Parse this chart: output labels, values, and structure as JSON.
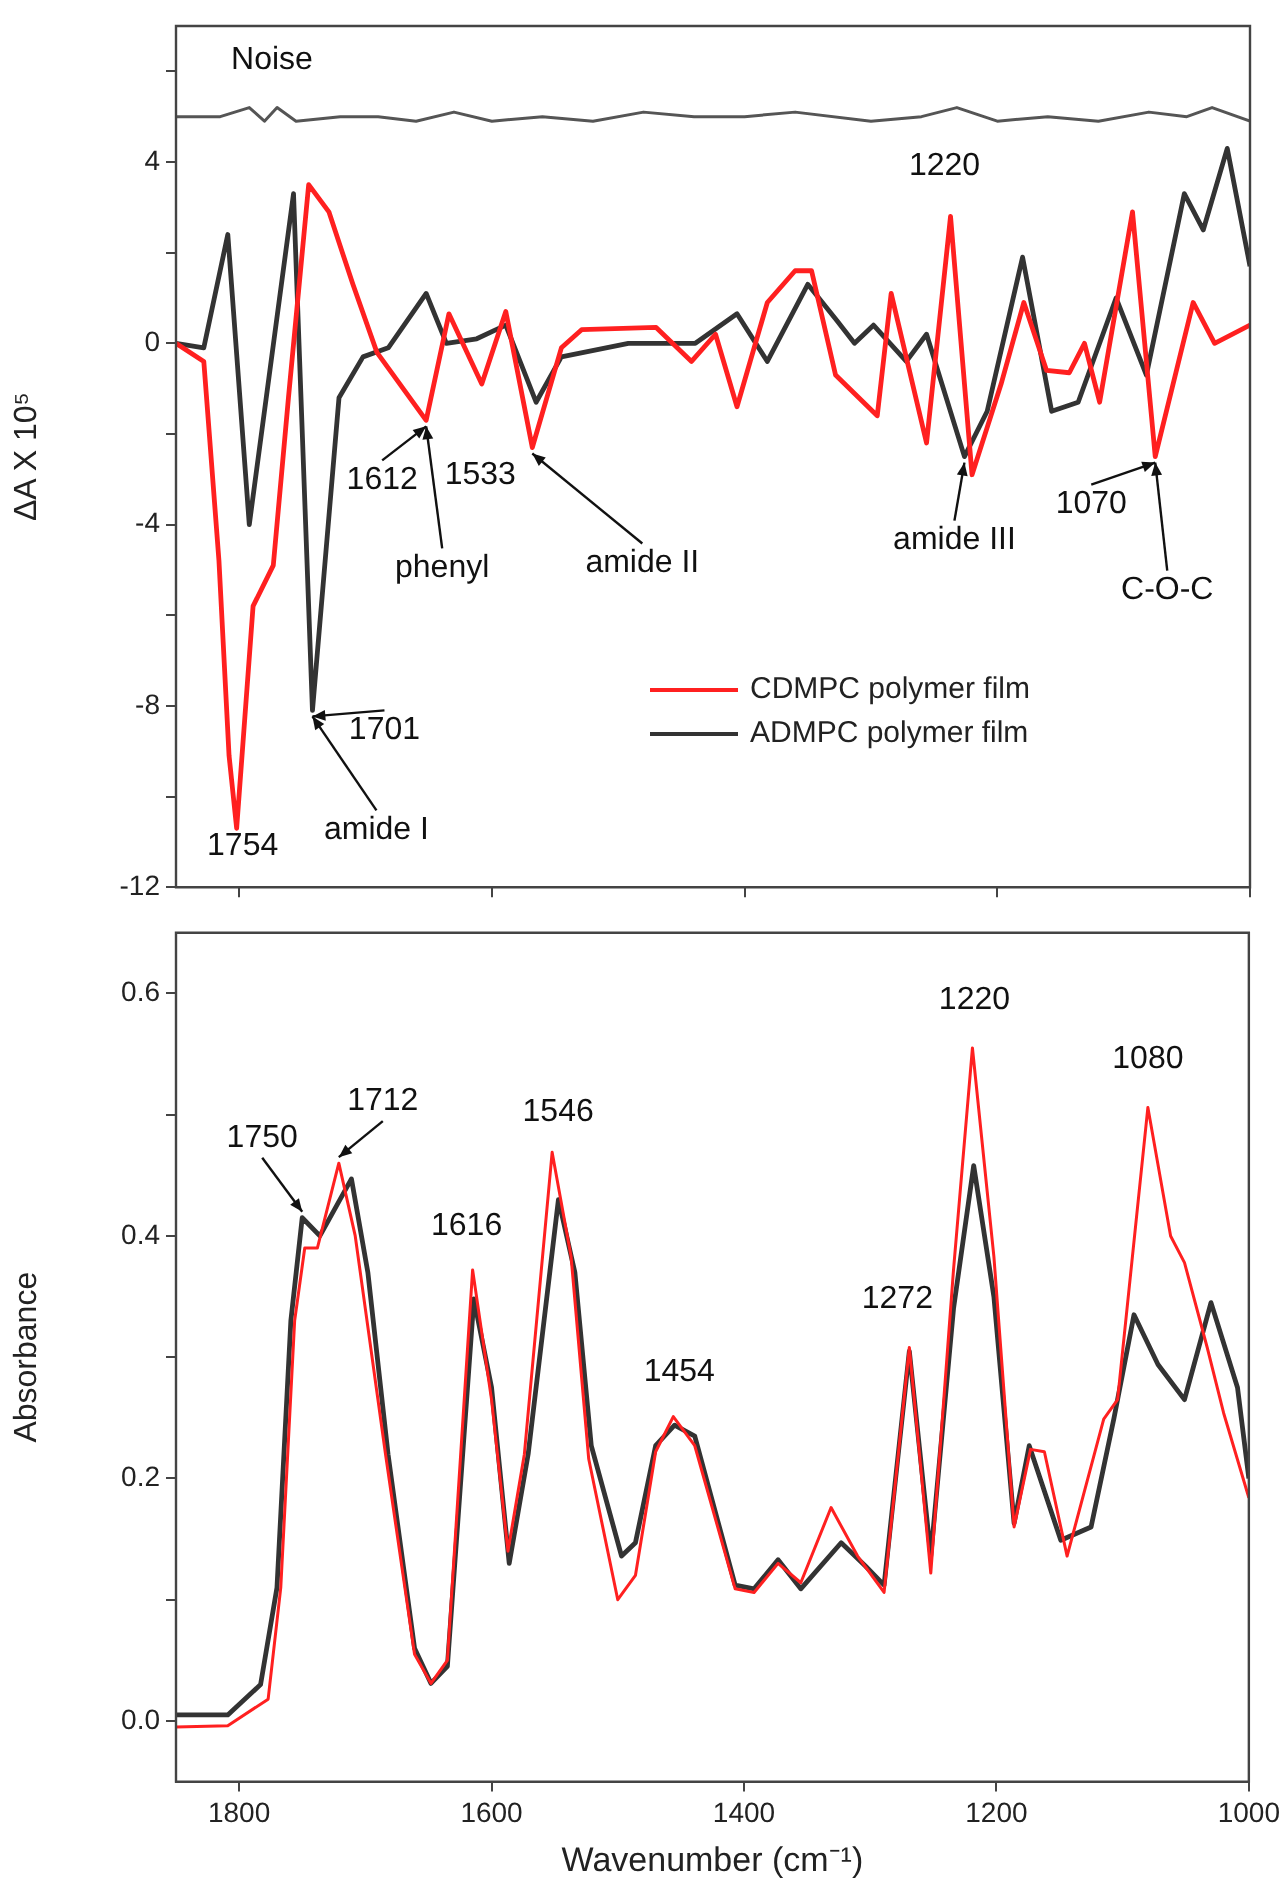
{
  "chart_data": [
    {
      "type": "line",
      "ylabel": "ΔA X 10⁵",
      "xlim": [
        1850,
        1000
      ],
      "xticks": [
        1800,
        1600,
        1400,
        1200,
        1000
      ],
      "tick_labels": "y",
      "ylim": [
        -12,
        7
      ],
      "yticks": [
        {
          "value": 6,
          "label": null
        },
        4,
        {
          "value": 2,
          "label": null
        },
        0,
        {
          "value": -2,
          "label": null
        },
        -4,
        {
          "value": -6,
          "label": null
        },
        -8,
        {
          "value": -10,
          "label": null
        },
        -12
      ],
      "grid": false,
      "legend": "bottom right",
      "marker": "none",
      "series": [
        {
          "color": "#555555",
          "x": [
            1850,
            1815,
            1792,
            1780,
            1770,
            1755,
            1720,
            1690,
            1660,
            1630,
            1600,
            1560,
            1520,
            1480,
            1440,
            1400,
            1360,
            1300,
            1260,
            1232,
            1200,
            1160,
            1120,
            1080,
            1050,
            1030,
            1000
          ],
          "values": [
            5.0,
            5.0,
            5.2,
            4.9,
            5.2,
            4.9,
            5.0,
            5.0,
            4.9,
            5.1,
            4.9,
            5.0,
            4.9,
            5.1,
            5.0,
            5.0,
            5.1,
            4.9,
            5.0,
            5.2,
            4.9,
            5.0,
            4.9,
            5.1,
            5.0,
            5.2,
            4.9
          ]
        },
        {
          "name": "CDMPC polymer film",
          "color": "#ff2020",
          "x": [
            1850,
            1828,
            1816,
            1808,
            1802,
            1789,
            1773,
            1761,
            1745,
            1729,
            1710,
            1691,
            1652,
            1634,
            1608,
            1589,
            1568,
            1545,
            1529,
            1470,
            1442,
            1423,
            1406,
            1382,
            1360,
            1347,
            1328,
            1295,
            1284,
            1256,
            1237,
            1220,
            1197,
            1179,
            1161,
            1143,
            1131,
            1119,
            1093,
            1075,
            1045,
            1028,
            1000
          ],
          "values": [
            0,
            -0.4,
            -4.8,
            -9.1,
            -10.7,
            -5.8,
            -4.9,
            -1.2,
            3.5,
            2.9,
            1.3,
            -0.2,
            -1.7,
            0.65,
            -0.9,
            0.7,
            -2.3,
            -0.1,
            0.3,
            0.35,
            -0.4,
            0.2,
            -1.4,
            0.9,
            1.6,
            1.6,
            -0.7,
            -1.6,
            1.1,
            -2.2,
            2.8,
            -2.9,
            -0.9,
            0.9,
            -0.6,
            -0.65,
            0,
            -1.3,
            2.9,
            -2.5,
            0.9,
            0,
            0.4
          ]
        },
        {
          "name": "ADMPC polymer film",
          "color": "#333333",
          "x": [
            1850,
            1828,
            1809,
            1792,
            1757,
            1742,
            1721,
            1702,
            1682,
            1652,
            1636,
            1612,
            1589,
            1565,
            1545,
            1492,
            1439,
            1406,
            1382,
            1350,
            1327,
            1313,
            1298,
            1272,
            1256,
            1226,
            1208,
            1180,
            1157,
            1136,
            1106,
            1082,
            1052,
            1037,
            1018,
            1000
          ],
          "values": [
            0,
            -0.1,
            2.4,
            -4.0,
            3.3,
            -8.1,
            -1.2,
            -0.3,
            -0.1,
            1.1,
            0,
            0.1,
            0.4,
            -1.3,
            -0.3,
            0,
            0,
            0.65,
            -0.4,
            1.3,
            0.5,
            0,
            0.4,
            -0.4,
            0.2,
            -2.5,
            -1.5,
            1.9,
            -1.5,
            -1.3,
            1.0,
            -0.7,
            3.3,
            2.5,
            4.3,
            1.7
          ]
        }
      ],
      "annotations": [
        "Noise",
        {
          "text": "1220",
          "x": 1237,
          "y": 2.8
        },
        {
          "text": "1612",
          "x": 1652,
          "y": -1.7
        },
        {
          "text": "phenyl",
          "x": 1652,
          "y": -1.7
        },
        {
          "text": "1533",
          "x": 1568,
          "y": -2.3
        },
        {
          "text": "amide II",
          "x": 1568,
          "y": -2.3
        },
        {
          "text": "amide III",
          "x": 1226,
          "y": -2.5
        },
        {
          "text": "1070",
          "x": 1075,
          "y": -2.5
        },
        {
          "text": "C-O-C",
          "x": 1075,
          "y": -2.5
        },
        {
          "text": "1701",
          "x": 1742,
          "y": -8.1
        },
        {
          "text": "amide I",
          "x": 1742,
          "y": -8.1
        },
        {
          "text": "1754",
          "x": 1802,
          "y": -10.7
        }
      ]
    },
    {
      "type": "line",
      "xlabel": "Wavenumber (cm⁻¹)",
      "ylabel": "Absorbance",
      "xlim": [
        1850,
        1000
      ],
      "xticks": [
        1800,
        1600,
        1400,
        1200,
        1000
      ],
      "ylim": [
        -0.05,
        0.65
      ],
      "yticks": [
        {
          "value": 0,
          "label": "0.0"
        },
        {
          "value": 0.1,
          "label": null
        },
        0.2,
        {
          "value": 0.3,
          "label": null
        },
        0.4,
        {
          "value": 0.5,
          "label": null
        },
        0.6
      ],
      "grid": false,
      "marker": "none",
      "series": [
        {
          "color": "#ff2020",
          "x": [
            1850,
            1809,
            1777,
            1767,
            1756,
            1748,
            1738,
            1721,
            1708,
            1684,
            1661,
            1648,
            1635,
            1615,
            1600,
            1587,
            1574,
            1552,
            1537,
            1523,
            1500,
            1486,
            1470,
            1456,
            1439,
            1407,
            1392,
            1373,
            1355,
            1331,
            1310,
            1289,
            1269,
            1252,
            1234,
            1219,
            1202,
            1186,
            1173,
            1162,
            1144,
            1115,
            1104,
            1080,
            1062,
            1051,
            1033,
            1020,
            1000
          ],
          "values": [
            -0.005,
            -0.004,
            0.018,
            0.11,
            0.33,
            0.39,
            0.39,
            0.46,
            0.4,
            0.22,
            0.055,
            0.031,
            0.05,
            0.372,
            0.265,
            0.14,
            0.22,
            0.469,
            0.383,
            0.216,
            0.1,
            0.12,
            0.222,
            0.251,
            0.227,
            0.109,
            0.106,
            0.13,
            0.114,
            0.176,
            0.136,
            0.106,
            0.308,
            0.122,
            0.372,
            0.555,
            0.383,
            0.16,
            0.224,
            0.222,
            0.136,
            0.249,
            0.265,
            0.506,
            0.4,
            0.378,
            0.308,
            0.254,
            0.184
          ]
        },
        {
          "color": "#333333",
          "x": [
            1850,
            1809,
            1783,
            1770,
            1759,
            1750,
            1736,
            1711,
            1698,
            1682,
            1661,
            1648,
            1635,
            1614,
            1600,
            1586,
            1571,
            1547,
            1534,
            1521,
            1497,
            1486,
            1470,
            1455,
            1439,
            1407,
            1392,
            1373,
            1355,
            1323,
            1304,
            1289,
            1269,
            1252,
            1234,
            1218,
            1202,
            1186,
            1174,
            1149,
            1125,
            1107,
            1091,
            1072,
            1051,
            1030,
            1009,
            1000
          ],
          "values": [
            0.005,
            0.005,
            0.03,
            0.11,
            0.33,
            0.415,
            0.4,
            0.447,
            0.37,
            0.22,
            0.06,
            0.031,
            0.045,
            0.348,
            0.275,
            0.13,
            0.22,
            0.43,
            0.37,
            0.227,
            0.136,
            0.147,
            0.227,
            0.244,
            0.235,
            0.112,
            0.109,
            0.133,
            0.109,
            0.147,
            0.128,
            0.112,
            0.305,
            0.136,
            0.34,
            0.458,
            0.35,
            0.163,
            0.227,
            0.149,
            0.16,
            0.249,
            0.335,
            0.294,
            0.265,
            0.345,
            0.275,
            0.2
          ]
        }
      ],
      "annotations": [
        {
          "text": "1750",
          "x": 1750,
          "y": 0.415
        },
        {
          "text": "1712",
          "x": 1721,
          "y": 0.46
        },
        {
          "text": "1616",
          "x": 1615,
          "y": 0.372
        },
        {
          "text": "1546",
          "x": 1552,
          "y": 0.469
        },
        {
          "text": "1454",
          "x": 1456,
          "y": 0.251
        },
        {
          "text": "1272",
          "x": 1269,
          "y": 0.308
        },
        {
          "text": "1220",
          "x": 1219,
          "y": 0.555
        },
        {
          "text": "1080",
          "x": 1080,
          "y": 0.506
        }
      ]
    }
  ]
}
